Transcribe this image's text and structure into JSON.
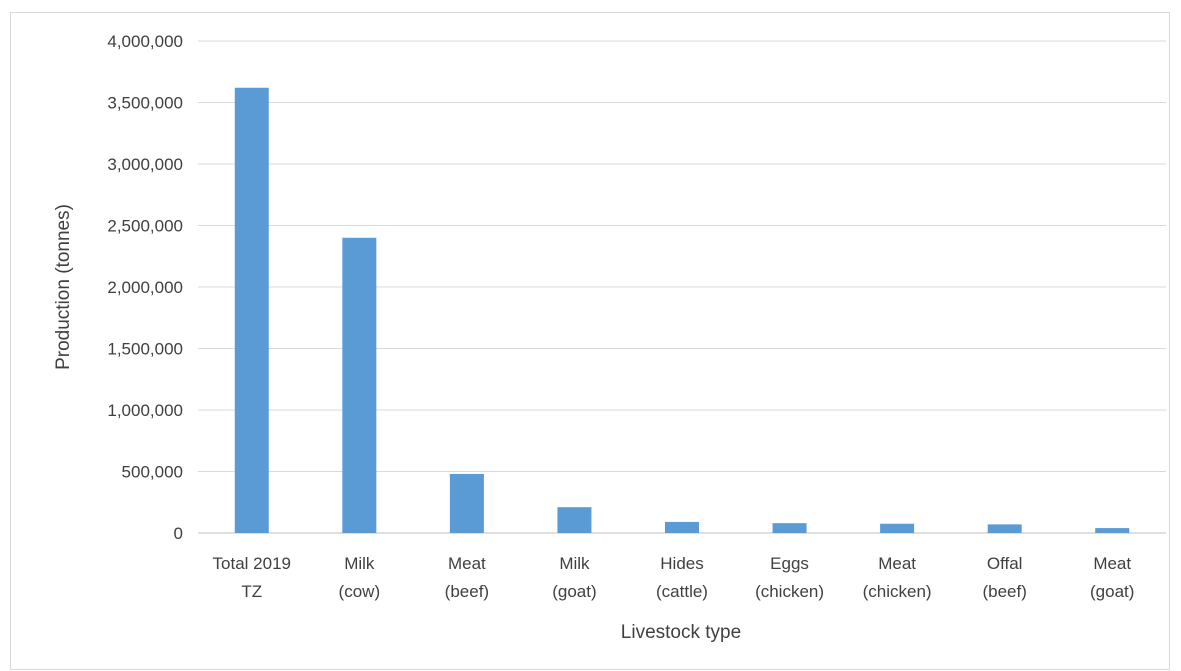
{
  "chart_data": {
    "type": "bar",
    "categories": [
      [
        "Total 2019",
        "TZ"
      ],
      [
        "Milk",
        "(cow)"
      ],
      [
        "Meat",
        "(beef)"
      ],
      [
        "Milk",
        "(goat)"
      ],
      [
        "Hides",
        "(cattle)"
      ],
      [
        "Eggs",
        "(chicken)"
      ],
      [
        "Meat",
        "(chicken)"
      ],
      [
        "Offal",
        "(beef)"
      ],
      [
        "Meat",
        "(goat)"
      ]
    ],
    "values": [
      3620000,
      2400000,
      480000,
      210000,
      90000,
      80000,
      75000,
      70000,
      40000
    ],
    "xlabel": "Livestock type",
    "ylabel": "Production (tonnes)",
    "ylim": [
      0,
      4000000
    ],
    "yticks": [
      {
        "value": 0,
        "label": "0"
      },
      {
        "value": 500000,
        "label": "500,000"
      },
      {
        "value": 1000000,
        "label": "1,000,000"
      },
      {
        "value": 1500000,
        "label": "1,500,000"
      },
      {
        "value": 2000000,
        "label": "2,000,000"
      },
      {
        "value": 2500000,
        "label": "2,500,000"
      },
      {
        "value": 3000000,
        "label": "3,000,000"
      },
      {
        "value": 3500000,
        "label": "3,500,000"
      },
      {
        "value": 4000000,
        "label": "4,000,000"
      }
    ],
    "grid": true,
    "bar_color": "#5b9bd5",
    "grid_color": "#d9d9d9"
  }
}
